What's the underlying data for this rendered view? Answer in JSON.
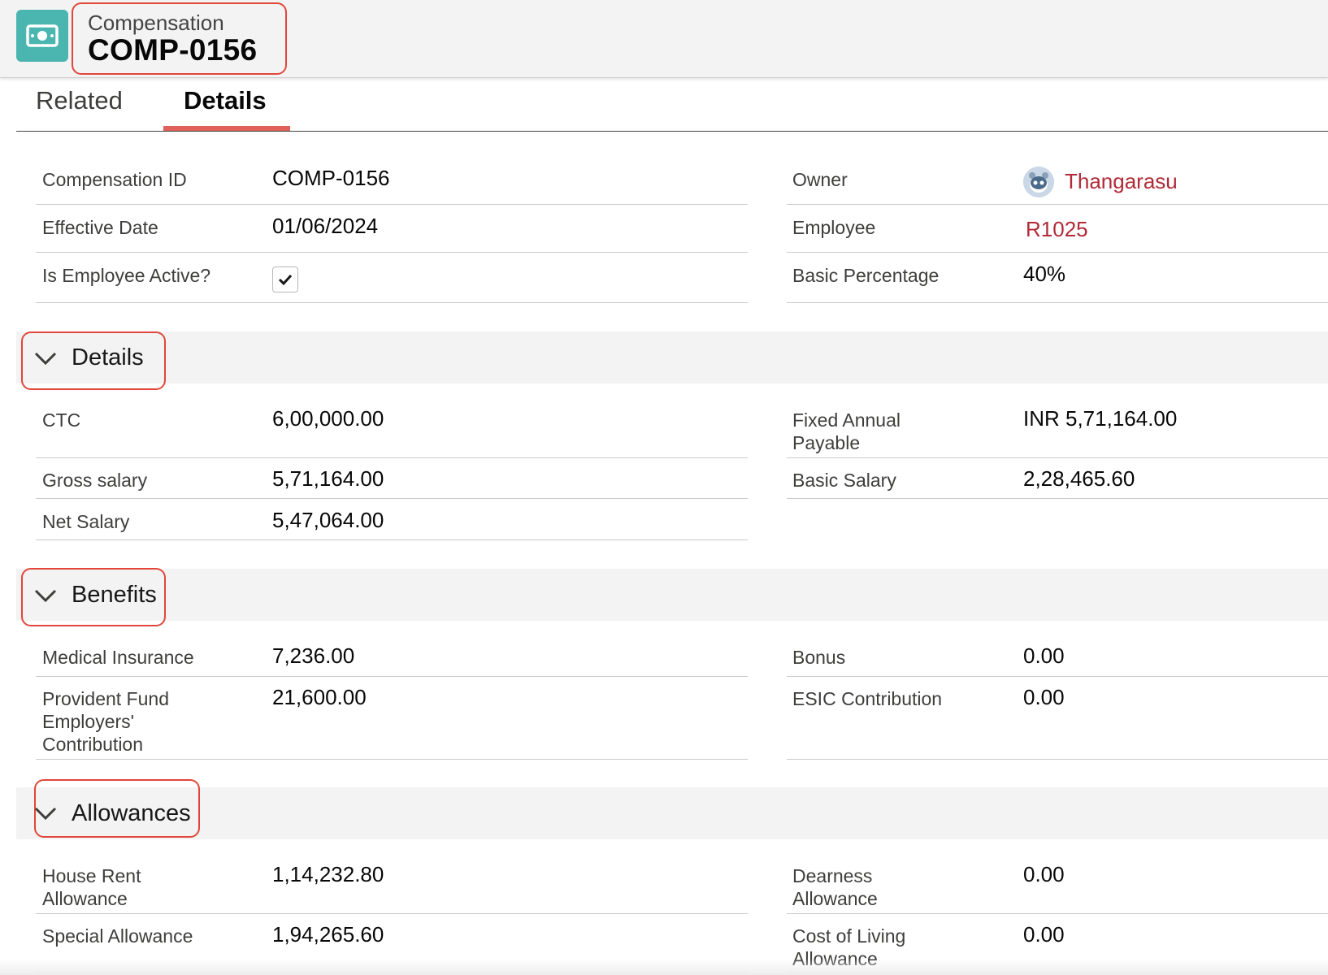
{
  "header": {
    "object_label": "Compensation",
    "record_name": "COMP-0156",
    "icon": "money-icon"
  },
  "tabs": [
    {
      "label": "Related",
      "active": false
    },
    {
      "label": "Details",
      "active": true
    }
  ],
  "top_fields": {
    "compensation_id": {
      "label": "Compensation ID",
      "value": "COMP-0156"
    },
    "effective_date": {
      "label": "Effective Date",
      "value": "01/06/2024"
    },
    "is_employee_active": {
      "label": "Is Employee Active?",
      "checked": true
    },
    "owner": {
      "label": "Owner",
      "value": "Thangarasu"
    },
    "employee": {
      "label": "Employee",
      "value": "R1025"
    },
    "basic_percentage": {
      "label": "Basic Percentage",
      "value": "40%"
    }
  },
  "sections": {
    "details": {
      "title": "Details",
      "ctc": {
        "label": "CTC",
        "value": "6,00,000.00"
      },
      "fixed_annual_payable": {
        "label_line1": "Fixed Annual",
        "label_line2": "Payable",
        "value": "INR 5,71,164.00"
      },
      "gross_salary": {
        "label": "Gross salary",
        "value": "5,71,164.00"
      },
      "basic_salary": {
        "label": "Basic Salary",
        "value": "2,28,465.60"
      },
      "net_salary": {
        "label": "Net Salary",
        "value": "5,47,064.00"
      }
    },
    "benefits": {
      "title": "Benefits",
      "medical_insurance": {
        "label": "Medical Insurance",
        "value": "7,236.00"
      },
      "bonus": {
        "label": "Bonus",
        "value": "0.00"
      },
      "provident_fund": {
        "label_line1": "Provident Fund",
        "label_line2": "Employers'",
        "label_line3": "Contribution",
        "value": "21,600.00"
      },
      "esic_contribution": {
        "label": "ESIC Contribution",
        "value": "0.00"
      }
    },
    "allowances": {
      "title": "Allowances",
      "house_rent": {
        "label_line1": "House Rent",
        "label_line2": "Allowance",
        "value": "1,14,232.80"
      },
      "dearness": {
        "label_line1": "Dearness",
        "label_line2": "Allowance",
        "value": "0.00"
      },
      "special": {
        "label": "Special Allowance",
        "value": "1,94,265.60"
      },
      "cost_of_living": {
        "label_line1": "Cost of Living",
        "label_line2": "Allowance",
        "value": "0.00"
      }
    }
  },
  "colors": {
    "accent_red": "#e0473a",
    "link": "#b02a37",
    "icon_bg": "#4bb6b0"
  }
}
